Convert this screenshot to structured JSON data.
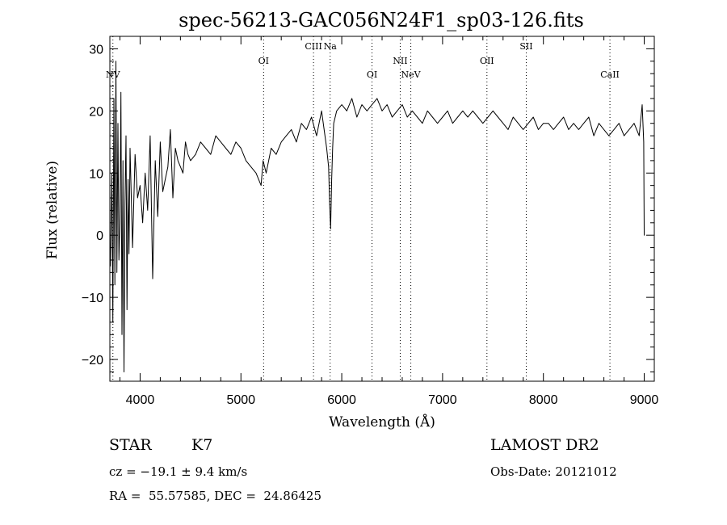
{
  "chart_data": {
    "type": "line",
    "title": "spec-56213-GAC056N24F1_sp03-126.fits",
    "xlabel": "Wavelength (Å)",
    "ylabel": "Flux (relative)",
    "xlim": [
      3700,
      9100
    ],
    "ylim": [
      -23.5,
      32
    ],
    "x_ticks": [
      4000,
      5000,
      6000,
      7000,
      8000,
      9000
    ],
    "y_ticks": [
      -20,
      -10,
      0,
      10,
      20,
      30
    ],
    "x_tick_labels": [
      "4000",
      "5000",
      "6000",
      "7000",
      "8000",
      "9000"
    ],
    "y_tick_labels": [
      "−20",
      "−10",
      "0",
      "10",
      "20",
      "30"
    ],
    "grid": false,
    "series": [
      {
        "x": [
          3705,
          3720,
          3730,
          3740,
          3750,
          3760,
          3770,
          3780,
          3790,
          3800,
          3810,
          3820,
          3830,
          3840,
          3850,
          3860,
          3870,
          3880,
          3890,
          3900,
          3925,
          3950,
          3975,
          4000,
          4025,
          4050,
          4075,
          4100,
          4125,
          4150,
          4175,
          4200,
          4225,
          4250,
          4275,
          4300,
          4325,
          4350,
          4375,
          4400,
          4425,
          4450,
          4475,
          4500,
          4550,
          4600,
          4650,
          4700,
          4750,
          4800,
          4850,
          4900,
          4950,
          5000,
          5050,
          5100,
          5150,
          5200,
          5220,
          5250,
          5300,
          5350,
          5400,
          5450,
          5500,
          5550,
          5600,
          5650,
          5700,
          5750,
          5800,
          5850,
          5870,
          5880,
          5890,
          5900,
          5910,
          5920,
          5950,
          6000,
          6050,
          6100,
          6150,
          6200,
          6250,
          6300,
          6350,
          6400,
          6450,
          6500,
          6550,
          6600,
          6650,
          6700,
          6750,
          6800,
          6850,
          6900,
          6950,
          7000,
          7050,
          7100,
          7150,
          7200,
          7250,
          7300,
          7350,
          7400,
          7450,
          7500,
          7550,
          7600,
          7650,
          7700,
          7750,
          7800,
          7850,
          7900,
          7950,
          8000,
          8050,
          8100,
          8150,
          8200,
          8250,
          8300,
          8350,
          8400,
          8450,
          8500,
          8550,
          8600,
          8650,
          8700,
          8750,
          8800,
          8850,
          8900,
          8950,
          8980,
          8995,
          9000,
          9002
        ],
        "y": [
          -5,
          10,
          -14,
          22,
          -8,
          28,
          -6,
          18,
          -4,
          2,
          23,
          -16,
          12,
          -22,
          5,
          16,
          -12,
          9,
          -3,
          14,
          -2,
          13,
          6,
          8,
          2,
          10,
          4,
          16,
          -7,
          12,
          3,
          15,
          7,
          9,
          11,
          17,
          6,
          14,
          12,
          11,
          10,
          15,
          13,
          12,
          13,
          15,
          14,
          13,
          16,
          15,
          14,
          13,
          15,
          14,
          12,
          11,
          10,
          8,
          12,
          10,
          14,
          13,
          15,
          16,
          17,
          15,
          18,
          17,
          19,
          16,
          20,
          14,
          11,
          5,
          1,
          9,
          14,
          18,
          20,
          21,
          20,
          22,
          19,
          21,
          20,
          21,
          22,
          20,
          21,
          19,
          20,
          21,
          19,
          20,
          19,
          18,
          20,
          19,
          18,
          19,
          20,
          18,
          19,
          20,
          19,
          20,
          19,
          18,
          19,
          20,
          19,
          18,
          17,
          19,
          18,
          17,
          18,
          19,
          17,
          18,
          18,
          17,
          18,
          19,
          17,
          18,
          17,
          18,
          19,
          16,
          18,
          17,
          16,
          17,
          18,
          16,
          17,
          18,
          16,
          21,
          15,
          0,
          0
        ]
      }
    ],
    "emission_lines": [
      {
        "label": "NV",
        "x": 3730,
        "label_row": 2
      },
      {
        "label": "OI",
        "x": 5225,
        "label_row": 1
      },
      {
        "label": "CIII",
        "x": 5720,
        "label_row": 0
      },
      {
        "label": "Na",
        "x": 5885,
        "label_row": 0
      },
      {
        "label": "OI",
        "x": 6300,
        "label_row": 2
      },
      {
        "label": "NII",
        "x": 6580,
        "label_row": 1
      },
      {
        "label": "NeV",
        "x": 6685,
        "label_row": 2
      },
      {
        "label": "OII",
        "x": 7440,
        "label_row": 1
      },
      {
        "label": "SII",
        "x": 7830,
        "label_row": 0
      },
      {
        "label": "CaII",
        "x": 8660,
        "label_row": 2
      }
    ]
  },
  "info": {
    "object_class": "STAR",
    "subclass": "K7",
    "survey": "LAMOST DR2",
    "redshift": "cz = −19.1 ± 9.4 km/s",
    "obs_date": "Obs-Date: 20121012",
    "coords": "RA =  55.57585, DEC =  24.86425"
  }
}
